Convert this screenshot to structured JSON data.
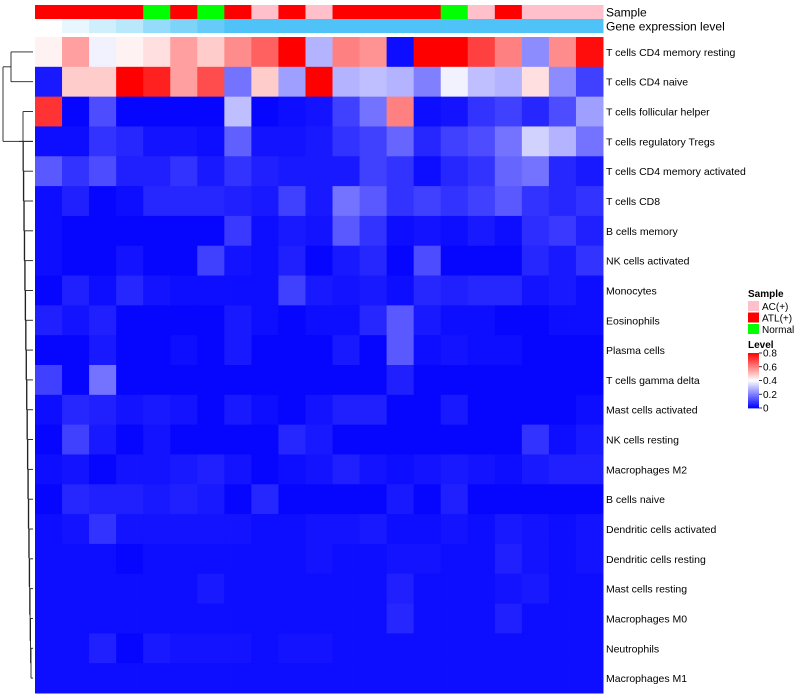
{
  "chart_data": {
    "type": "heatmap",
    "title": "",
    "xlabel": "",
    "ylabel": "",
    "annotation_rows": [
      {
        "key": "sample",
        "label": "Sample"
      },
      {
        "key": "gene_expression_level",
        "label": "Gene expression level"
      }
    ],
    "columns": [
      {
        "sample": "ATL(+)",
        "gene_expression_level": 0.0
      },
      {
        "sample": "ATL(+)",
        "gene_expression_level": 0.02
      },
      {
        "sample": "ATL(+)",
        "gene_expression_level": 0.04
      },
      {
        "sample": "ATL(+)",
        "gene_expression_level": 0.06
      },
      {
        "sample": "Normal",
        "gene_expression_level": 0.09
      },
      {
        "sample": "ATL(+)",
        "gene_expression_level": 0.11
      },
      {
        "sample": "Normal",
        "gene_expression_level": 0.13
      },
      {
        "sample": "ATL(+)",
        "gene_expression_level": 0.15
      },
      {
        "sample": "AC(+)",
        "gene_expression_level": 0.18
      },
      {
        "sample": "ATL(+)",
        "gene_expression_level": 0.2
      },
      {
        "sample": "AC(+)",
        "gene_expression_level": 0.22
      },
      {
        "sample": "ATL(+)",
        "gene_expression_level": 0.4
      },
      {
        "sample": "ATL(+)",
        "gene_expression_level": 0.42
      },
      {
        "sample": "ATL(+)",
        "gene_expression_level": 0.44
      },
      {
        "sample": "ATL(+)",
        "gene_expression_level": 0.46
      },
      {
        "sample": "Normal",
        "gene_expression_level": 0.48
      },
      {
        "sample": "AC(+)",
        "gene_expression_level": 0.5
      },
      {
        "sample": "ATL(+)",
        "gene_expression_level": 0.52
      },
      {
        "sample": "AC(+)",
        "gene_expression_level": 0.54
      },
      {
        "sample": "AC(+)",
        "gene_expression_level": 0.6
      },
      {
        "sample": "AC(+)",
        "gene_expression_level": 0.65
      }
    ],
    "rows": [
      "T cells CD4 memory resting",
      "T cells CD4 naive",
      "T cells follicular helper",
      "T cells regulatory  Tregs",
      "T cells CD4 memory activated",
      "T cells CD8",
      "B cells memory",
      "NK cells activated",
      "Monocytes",
      "Eosinophils",
      "Plasma cells",
      "T cells gamma delta",
      "Mast cells activated",
      "NK cells resting",
      "Macrophages M2",
      "B cells naive",
      "Dendritic cells activated",
      "Dendritic cells resting",
      "Mast cells resting",
      "Macrophages M0",
      "Neutrophils",
      "Macrophages M1"
    ],
    "values": [
      [
        0.42,
        0.55,
        0.38,
        0.42,
        0.45,
        0.55,
        0.48,
        0.58,
        0.65,
        0.82,
        0.28,
        0.6,
        0.57,
        0.02,
        0.82,
        0.82,
        0.7,
        0.6,
        0.22,
        0.58,
        0.78
      ],
      [
        0.04,
        0.48,
        0.48,
        0.8,
        0.75,
        0.55,
        0.68,
        0.18,
        0.48,
        0.25,
        0.8,
        0.28,
        0.3,
        0.28,
        0.2,
        0.38,
        0.3,
        0.28,
        0.45,
        0.22,
        0.1
      ],
      [
        0.72,
        0.01,
        0.12,
        0.01,
        0.01,
        0.01,
        0.01,
        0.3,
        0.01,
        0.02,
        0.03,
        0.1,
        0.18,
        0.6,
        0.02,
        0.03,
        0.08,
        0.1,
        0.06,
        0.12,
        0.25
      ],
      [
        0.02,
        0.02,
        0.08,
        0.06,
        0.03,
        0.03,
        0.02,
        0.15,
        0.03,
        0.03,
        0.04,
        0.08,
        0.1,
        0.16,
        0.06,
        0.1,
        0.12,
        0.18,
        0.33,
        0.28,
        0.18
      ],
      [
        0.14,
        0.08,
        0.12,
        0.05,
        0.05,
        0.08,
        0.04,
        0.08,
        0.05,
        0.04,
        0.04,
        0.04,
        0.1,
        0.08,
        0.02,
        0.06,
        0.08,
        0.16,
        0.18,
        0.06,
        0.04
      ],
      [
        0.02,
        0.05,
        0.01,
        0.02,
        0.06,
        0.06,
        0.06,
        0.05,
        0.04,
        0.1,
        0.04,
        0.18,
        0.14,
        0.08,
        0.1,
        0.08,
        0.1,
        0.14,
        0.08,
        0.06,
        0.08
      ],
      [
        0.02,
        0.01,
        0.01,
        0.01,
        0.01,
        0.01,
        0.01,
        0.09,
        0.02,
        0.04,
        0.03,
        0.14,
        0.08,
        0.02,
        0.03,
        0.02,
        0.04,
        0.02,
        0.07,
        0.09,
        0.05
      ],
      [
        0.02,
        0.01,
        0.01,
        0.03,
        0.01,
        0.01,
        0.1,
        0.03,
        0.02,
        0.05,
        0.01,
        0.04,
        0.06,
        0.01,
        0.12,
        0.01,
        0.01,
        0.01,
        0.06,
        0.04,
        0.08
      ],
      [
        0.01,
        0.05,
        0.02,
        0.06,
        0.03,
        0.02,
        0.02,
        0.02,
        0.02,
        0.1,
        0.04,
        0.03,
        0.04,
        0.02,
        0.06,
        0.05,
        0.06,
        0.06,
        0.03,
        0.04,
        0.02
      ],
      [
        0.05,
        0.03,
        0.05,
        0.01,
        0.01,
        0.01,
        0.01,
        0.04,
        0.02,
        0.01,
        0.02,
        0.02,
        0.06,
        0.14,
        0.04,
        0.02,
        0.02,
        0.01,
        0.01,
        0.02,
        0.02
      ],
      [
        0.01,
        0.01,
        0.04,
        0.01,
        0.01,
        0.02,
        0.01,
        0.04,
        0.01,
        0.01,
        0.01,
        0.04,
        0.01,
        0.14,
        0.02,
        0.03,
        0.02,
        0.02,
        0.01,
        0.01,
        0.01
      ],
      [
        0.1,
        0.01,
        0.18,
        0.01,
        0.01,
        0.01,
        0.01,
        0.01,
        0.01,
        0.01,
        0.01,
        0.01,
        0.01,
        0.05,
        0.01,
        0.01,
        0.01,
        0.01,
        0.01,
        0.01,
        0.01
      ],
      [
        0.02,
        0.06,
        0.05,
        0.03,
        0.04,
        0.03,
        0.01,
        0.04,
        0.02,
        0.01,
        0.03,
        0.05,
        0.05,
        0.01,
        0.01,
        0.04,
        0.01,
        0.01,
        0.01,
        0.01,
        0.02
      ],
      [
        0.01,
        0.1,
        0.04,
        0.01,
        0.03,
        0.01,
        0.01,
        0.01,
        0.01,
        0.06,
        0.04,
        0.01,
        0.01,
        0.01,
        0.01,
        0.01,
        0.01,
        0.01,
        0.08,
        0.02,
        0.04
      ],
      [
        0.02,
        0.03,
        0.01,
        0.03,
        0.03,
        0.04,
        0.05,
        0.03,
        0.01,
        0.02,
        0.03,
        0.05,
        0.03,
        0.02,
        0.03,
        0.04,
        0.03,
        0.02,
        0.04,
        0.05,
        0.05
      ],
      [
        0.01,
        0.06,
        0.05,
        0.05,
        0.04,
        0.05,
        0.04,
        0.01,
        0.06,
        0.01,
        0.01,
        0.01,
        0.01,
        0.04,
        0.01,
        0.05,
        0.01,
        0.01,
        0.01,
        0.01,
        0.01
      ],
      [
        0.02,
        0.03,
        0.08,
        0.03,
        0.03,
        0.03,
        0.03,
        0.03,
        0.02,
        0.02,
        0.03,
        0.03,
        0.04,
        0.02,
        0.02,
        0.03,
        0.02,
        0.04,
        0.03,
        0.02,
        0.03
      ],
      [
        0.02,
        0.02,
        0.02,
        0.01,
        0.02,
        0.02,
        0.02,
        0.02,
        0.02,
        0.02,
        0.03,
        0.02,
        0.02,
        0.03,
        0.03,
        0.02,
        0.02,
        0.05,
        0.03,
        0.02,
        0.03
      ],
      [
        0.02,
        0.02,
        0.02,
        0.02,
        0.02,
        0.02,
        0.04,
        0.02,
        0.02,
        0.02,
        0.02,
        0.02,
        0.02,
        0.05,
        0.02,
        0.02,
        0.02,
        0.03,
        0.04,
        0.02,
        0.02
      ],
      [
        0.02,
        0.02,
        0.02,
        0.02,
        0.02,
        0.02,
        0.02,
        0.02,
        0.02,
        0.02,
        0.02,
        0.02,
        0.02,
        0.06,
        0.02,
        0.02,
        0.02,
        0.05,
        0.02,
        0.02,
        0.02
      ],
      [
        0.02,
        0.02,
        0.05,
        0.01,
        0.04,
        0.03,
        0.03,
        0.03,
        0.02,
        0.03,
        0.03,
        0.02,
        0.02,
        0.02,
        0.02,
        0.02,
        0.02,
        0.02,
        0.02,
        0.02,
        0.02
      ],
      [
        0.02,
        0.02,
        0.02,
        0.02,
        0.02,
        0.02,
        0.02,
        0.02,
        0.02,
        0.02,
        0.02,
        0.02,
        0.02,
        0.02,
        0.02,
        0.02,
        0.02,
        0.02,
        0.02,
        0.02,
        0.02
      ]
    ],
    "color_scale": {
      "min": 0,
      "max": 0.8,
      "stops": [
        {
          "value": 0,
          "color": "#0000ff"
        },
        {
          "value": 0.4,
          "color": "#ffffff"
        },
        {
          "value": 0.8,
          "color": "#ff0000"
        }
      ]
    },
    "annotation_colors": {
      "sample": {
        "AC(+)": "#ffc0cb",
        "ATL(+)": "#ff0000",
        "Normal": "#00ff00"
      },
      "gene_expression_level": {
        "low": "#ffffff",
        "high": "#4fc3f7"
      }
    },
    "legends": {
      "sample": {
        "title": "Sample",
        "entries": [
          "AC(+)",
          "ATL(+)",
          "Normal"
        ]
      },
      "level": {
        "title": "Level",
        "ticks": [
          0.8,
          0.6,
          0.4,
          0.2,
          0
        ]
      }
    },
    "row_dendrogram": true,
    "legend_placement": "right"
  }
}
